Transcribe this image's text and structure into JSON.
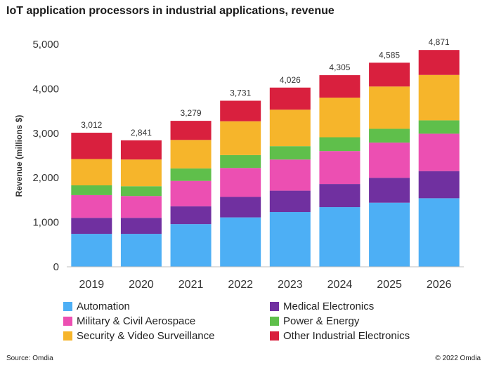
{
  "chart_data": {
    "type": "bar",
    "stacked": true,
    "title": "IoT application processors in industrial applications, revenue",
    "xlabel": "",
    "ylabel": "Revenue  (millions $)",
    "ylim": [
      0,
      5000
    ],
    "yticks": [
      0,
      1000,
      2000,
      3000,
      4000,
      5000
    ],
    "ytick_labels": [
      "0",
      "1,000",
      "2,000",
      "3,000",
      "4,000",
      "5,000"
    ],
    "categories": [
      "2019",
      "2020",
      "2021",
      "2022",
      "2023",
      "2024",
      "2025",
      "2026"
    ],
    "totals": [
      3012,
      2841,
      3279,
      3731,
      4026,
      4305,
      4585,
      4871
    ],
    "total_labels": [
      "3,012",
      "2,841",
      "3,279",
      "3,731",
      "4,026",
      "4,305",
      "4,585",
      "4,871"
    ],
    "series": [
      {
        "name": "Automation",
        "color": "#4daff5",
        "values": [
          740,
          740,
          960,
          1110,
          1230,
          1340,
          1440,
          1540
        ]
      },
      {
        "name": "Medical Electronics",
        "color": "#7030a0",
        "values": [
          360,
          360,
          400,
          460,
          480,
          520,
          560,
          610
        ]
      },
      {
        "name": "Military & Civil Aerospace",
        "color": "#ec4fb2",
        "values": [
          510,
          490,
          570,
          650,
          700,
          740,
          790,
          840
        ]
      },
      {
        "name": "Power & Energy",
        "color": "#5fbf4b",
        "values": [
          220,
          220,
          280,
          290,
          300,
          310,
          310,
          300
        ]
      },
      {
        "name": "Security & Video Surveillance",
        "color": "#f6b52b",
        "values": [
          590,
          600,
          640,
          760,
          820,
          890,
          950,
          1020
        ]
      },
      {
        "name": "Other Industrial Electronics",
        "color": "#d9203e",
        "values": [
          592,
          431,
          429,
          461,
          496,
          505,
          535,
          561
        ]
      }
    ],
    "legend": "bottom",
    "grid": false
  },
  "footer": {
    "source": "Source: Omdia",
    "copyright": "© 2022 Omdia"
  }
}
